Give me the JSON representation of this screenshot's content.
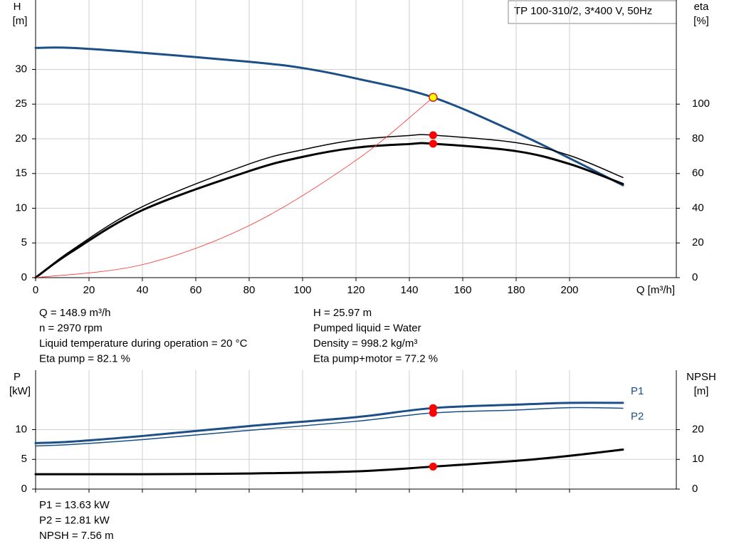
{
  "chart_data": [
    {
      "type": "line",
      "title": "TP 100-310/2, 3*400 V, 50Hz",
      "xlabel": "Q [m³/h]",
      "ylabel": [
        "H",
        "[m]"
      ],
      "y2label": [
        "eta",
        "[%]"
      ],
      "xlim": [
        0,
        240
      ],
      "xticks": [
        0,
        20,
        40,
        60,
        80,
        100,
        120,
        140,
        160,
        180,
        200
      ],
      "ylim": [
        0,
        40
      ],
      "yticks": [
        0,
        5,
        10,
        15,
        20,
        25,
        30
      ],
      "y2lim": [
        0,
        160
      ],
      "y2ticks": [
        0,
        20,
        40,
        60,
        80,
        100
      ],
      "grid": true,
      "series": [
        {
          "color": "#1b4f86",
          "linewidth": 3,
          "x": [
            0,
            13.3,
            40,
            80,
            100,
            120,
            148.9,
            180,
            200,
            220
          ],
          "values": [
            33.1,
            33.1,
            32.4,
            31.1,
            30.2,
            28.7,
            25.97,
            20.9,
            17.2,
            13.3
          ]
        },
        {
          "color": "#000000",
          "linewidth": 1.5,
          "axis": "y2",
          "x": [
            0,
            13.3,
            40,
            80,
            100,
            120,
            140,
            148.9,
            180,
            200,
            220
          ],
          "values": [
            0,
            15.6,
            40.9,
            65.5,
            73.7,
            79.4,
            81.9,
            82.1,
            77.8,
            70.4,
            57.7
          ]
        },
        {
          "color": "#000000",
          "linewidth": 3,
          "axis": "y2",
          "x": [
            0,
            13.3,
            40,
            80,
            100,
            120,
            140,
            148.9,
            180,
            200,
            220
          ],
          "values": [
            0,
            14.7,
            38.9,
            61.4,
            69.6,
            74.9,
            77,
            77.2,
            72.9,
            65.5,
            54
          ]
        },
        {
          "color": "#ff3030",
          "linewidth": 0.8,
          "x": [
            0,
            40,
            80,
            120,
            148.9
          ],
          "values": [
            0,
            1.87,
            7.5,
            16.9,
            25.97
          ]
        },
        {
          "color": "#ffff00",
          "marker": true,
          "x": [
            148.9
          ],
          "values": [
            25.97
          ]
        },
        {
          "color": "#ff0000",
          "marker": true,
          "axis": "y2",
          "x": [
            148.9,
            148.9
          ],
          "values": [
            82.1,
            77.2
          ]
        }
      ],
      "info_left": [
        "Q = 148.9 m³/h",
        "n = 2970 rpm",
        "Liquid temperature during operation = 20 °C",
        "Eta pump = 82.1 %"
      ],
      "info_right": [
        "H = 25.97 m",
        "Pumped liquid = Water",
        "Density = 998.2 kg/m³",
        "Eta pump+motor = 77.2 %"
      ]
    },
    {
      "type": "line",
      "ylabel": [
        "P",
        "[kW]"
      ],
      "y2label": [
        "NPSH",
        "[m]"
      ],
      "xlim": [
        0,
        240
      ],
      "xticks": [
        0,
        20,
        40,
        60,
        80,
        100,
        120,
        140,
        160,
        180,
        200
      ],
      "xtick_labels": false,
      "ylim": [
        0,
        20
      ],
      "yticks": [
        0,
        5,
        10
      ],
      "y2lim": [
        0,
        40
      ],
      "y2ticks": [
        0,
        10,
        20
      ],
      "grid": true,
      "series": [
        {
          "name": "P1",
          "color": "#1b4f86",
          "linewidth": 3,
          "x": [
            0,
            13.3,
            40,
            80,
            120,
            148.9,
            180,
            200,
            220
          ],
          "values": [
            7.74,
            7.98,
            8.93,
            10.6,
            12.1,
            13.63,
            14.2,
            14.5,
            14.5
          ]
        },
        {
          "name": "P2",
          "color": "#1b4f86",
          "linewidth": 1.5,
          "x": [
            0,
            13.3,
            40,
            80,
            120,
            148.9,
            180,
            200,
            220
          ],
          "values": [
            7.26,
            7.5,
            8.33,
            9.88,
            11.4,
            12.81,
            13.3,
            13.7,
            13.6
          ]
        },
        {
          "color": "#000000",
          "linewidth": 3,
          "axis": "y2",
          "x": [
            0,
            13.3,
            40,
            80,
            120,
            148.9,
            180,
            200,
            220
          ],
          "values": [
            5,
            5,
            5,
            5.24,
            5.95,
            7.56,
            9.5,
            11.2,
            13.3
          ]
        },
        {
          "color": "#ff0000",
          "marker": true,
          "x": [
            148.9,
            148.9
          ],
          "values": [
            13.63,
            12.81
          ]
        },
        {
          "color": "#ff0000",
          "marker": true,
          "axis": "y2",
          "x": [
            148.9
          ],
          "values": [
            7.56
          ]
        }
      ],
      "info": [
        "P1 = 13.63 kW",
        "P2 = 12.81 kW",
        "NPSH = 7.56 m"
      ]
    }
  ]
}
